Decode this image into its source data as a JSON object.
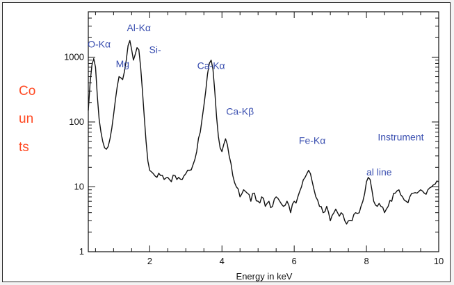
{
  "chart_data": {
    "type": "line",
    "title": "",
    "xlabel": "Energy in keV",
    "ylabel_fragments": [
      "Co",
      "un",
      "ts"
    ],
    "ylabel_color": "#ff4a24",
    "xlim": [
      0.3,
      10
    ],
    "ylim": [
      1,
      5000
    ],
    "yscale": "log",
    "grid": false,
    "x_ticks": [
      "2",
      "4",
      "6",
      "8",
      "10"
    ],
    "x_tick_values": [
      2,
      4,
      6,
      8,
      10
    ],
    "y_ticks": [
      "1",
      "10",
      "100",
      "1000"
    ],
    "y_tick_values": [
      1,
      10,
      100,
      1000
    ],
    "line_color": "#111111",
    "annotation_color": "#3a4fb0",
    "series": [
      {
        "x": [
          0.3,
          0.35,
          0.4,
          0.45,
          0.5,
          0.55,
          0.6,
          0.65,
          0.7,
          0.75,
          0.8,
          0.85,
          0.9,
          0.95,
          1.0,
          1.05,
          1.1,
          1.15,
          1.2,
          1.25,
          1.3,
          1.35,
          1.4,
          1.45,
          1.5,
          1.55,
          1.6,
          1.65,
          1.7,
          1.75,
          1.8,
          1.85,
          1.9,
          1.95,
          2.0,
          2.1,
          2.2,
          2.3,
          2.4,
          2.5,
          2.6,
          2.7,
          2.8,
          2.9,
          3.0,
          3.1,
          3.2,
          3.3,
          3.4,
          3.5,
          3.55,
          3.6,
          3.65,
          3.7,
          3.75,
          3.8,
          3.85,
          3.9,
          3.95,
          4.0,
          4.05,
          4.1,
          4.15,
          4.2,
          4.3,
          4.4,
          4.5,
          4.6,
          4.7,
          4.8,
          4.9,
          5.0,
          5.1,
          5.2,
          5.3,
          5.4,
          5.5,
          5.6,
          5.7,
          5.8,
          5.9,
          6.0,
          6.1,
          6.2,
          6.3,
          6.35,
          6.4,
          6.45,
          6.5,
          6.6,
          6.7,
          6.8,
          6.9,
          7.0,
          7.1,
          7.2,
          7.3,
          7.4,
          7.5,
          7.6,
          7.7,
          7.8,
          7.9,
          8.0,
          8.05,
          8.1,
          8.15,
          8.2,
          8.3,
          8.4,
          8.5,
          8.6,
          8.7,
          8.8,
          8.9,
          9.0,
          9.1,
          9.2,
          9.3,
          9.4,
          9.5,
          9.6,
          9.7,
          9.8,
          9.9,
          10.0
        ],
        "y": [
          150,
          400,
          750,
          950,
          700,
          250,
          110,
          70,
          50,
          40,
          38,
          42,
          55,
          80,
          130,
          220,
          350,
          500,
          480,
          450,
          600,
          900,
          1500,
          1800,
          1300,
          900,
          1100,
          1400,
          1300,
          700,
          300,
          120,
          50,
          25,
          18,
          16,
          14,
          15,
          13,
          14,
          12,
          15,
          14,
          13,
          16,
          18,
          22,
          35,
          70,
          180,
          300,
          550,
          800,
          900,
          650,
          300,
          120,
          60,
          40,
          35,
          45,
          55,
          45,
          30,
          15,
          10,
          7,
          9,
          8,
          6,
          8,
          6,
          7,
          5,
          6,
          5,
          7,
          6,
          5,
          6,
          4,
          6,
          7,
          10,
          14,
          16,
          18,
          16,
          12,
          7,
          5,
          4,
          5,
          3,
          4,
          4,
          4,
          3,
          3,
          3,
          4,
          4,
          6,
          12,
          14,
          13,
          9,
          6,
          5,
          5,
          4,
          5,
          6,
          8,
          9,
          7,
          6,
          7,
          8,
          8,
          9,
          8,
          9,
          10,
          11,
          12
        ]
      }
    ],
    "annotations": [
      {
        "text": "O-Kα",
        "x": 0.6,
        "y": 1400
      },
      {
        "text": "Mg",
        "x": 1.25,
        "y": 700
      },
      {
        "text": "Al-Kα",
        "x": 1.7,
        "y": 2500
      },
      {
        "text": "Si-",
        "x": 2.15,
        "y": 1150
      },
      {
        "text": "Ca-Kα",
        "x": 3.7,
        "y": 660
      },
      {
        "text": "Ca-Kβ",
        "x": 4.5,
        "y": 130
      },
      {
        "text": "Fe-Kα",
        "x": 6.5,
        "y": 46
      },
      {
        "text": "Instrument",
        "x": 8.95,
        "y": 52
      },
      {
        "text": "al line",
        "x": 8.35,
        "y": 15
      }
    ]
  }
}
